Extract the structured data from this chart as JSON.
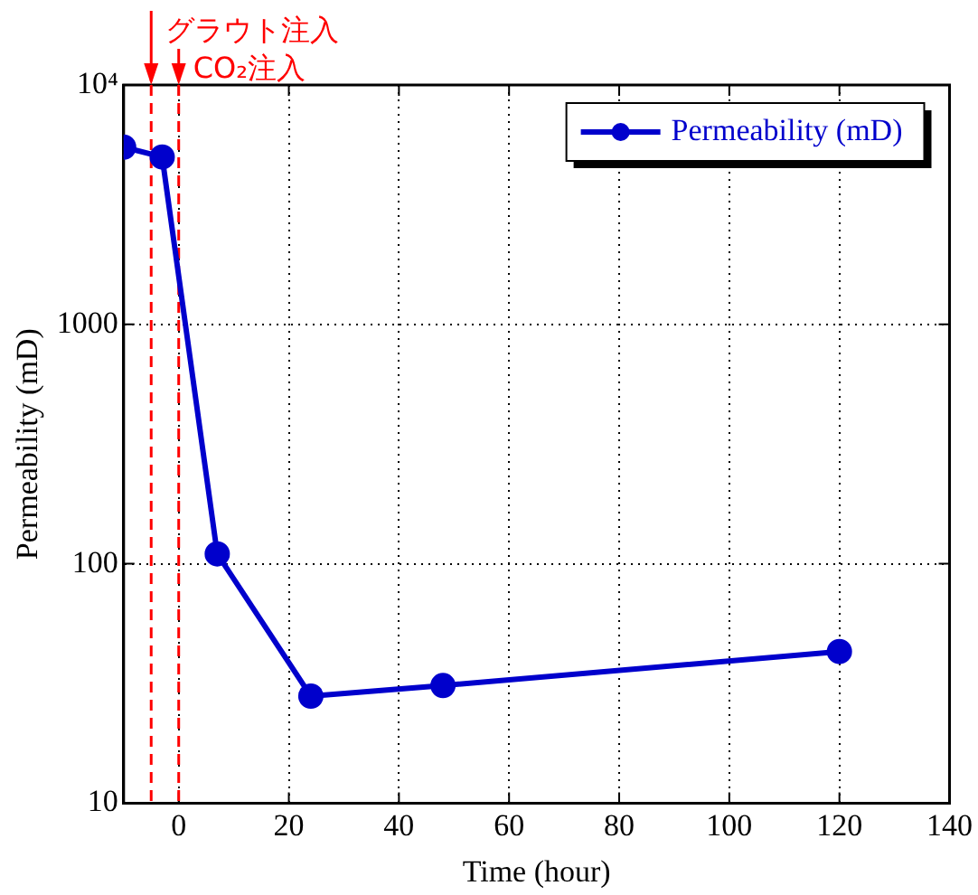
{
  "chart_data": {
    "type": "line",
    "xlabel": "Time (hour)",
    "ylabel": "Permeability (mD)",
    "x": [
      -10,
      -3,
      7,
      24,
      48,
      120
    ],
    "series": [
      {
        "name": "Permeability (mD)",
        "color": "#0000cc",
        "values": [
          5500,
          5000,
          110,
          28,
          31,
          43
        ]
      }
    ],
    "xlim": [
      -10,
      140
    ],
    "xticks": [
      0,
      20,
      40,
      60,
      80,
      100,
      120,
      140
    ],
    "ylim": [
      10,
      10000
    ],
    "yticks": [
      10,
      100,
      1000,
      {
        "value": 10000,
        "label": "10⁴"
      }
    ],
    "log": "y",
    "grid": true,
    "legend": "top right",
    "marker": "circle",
    "line_style": "solid",
    "ref_lines": [
      {
        "axis": "x",
        "value": -5,
        "label": "グラウト注入",
        "color": "#ff0000",
        "line_style": "dashed"
      },
      {
        "axis": "x",
        "value": 0,
        "label": "CO₂注入",
        "color": "#ff0000",
        "line_style": "dashed"
      }
    ]
  }
}
